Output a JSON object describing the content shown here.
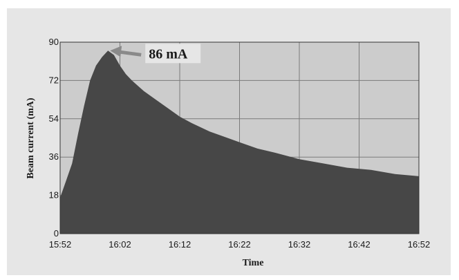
{
  "chart_data": {
    "type": "area",
    "title": "",
    "xlabel": "Time",
    "ylabel": "Beam current (mA)",
    "x_ticks": [
      "15:52",
      "16:02",
      "16:12",
      "16:22",
      "16:32",
      "16:42",
      "16:52"
    ],
    "y_ticks": [
      "0",
      "18",
      "36",
      "54",
      "72",
      "90"
    ],
    "ylim": [
      0,
      90
    ],
    "xlim": [
      "15:52",
      "16:52"
    ],
    "grid": true,
    "series": [
      {
        "color": "#474747",
        "x": [
          "15:52",
          "15:53",
          "15:54",
          "15:55",
          "15:56",
          "15:57",
          "15:58",
          "15:59",
          "16:00",
          "16:01",
          "16:02",
          "16:03",
          "16:04",
          "16:06",
          "16:08",
          "16:10",
          "16:12",
          "16:14",
          "16:17",
          "16:20",
          "16:22",
          "16:25",
          "16:28",
          "16:32",
          "16:36",
          "16:40",
          "16:44",
          "16:48",
          "16:52"
        ],
        "values": [
          17,
          25,
          33,
          47,
          60,
          72,
          79,
          83,
          86,
          84,
          79,
          75,
          72,
          67,
          63,
          59,
          55,
          52,
          48,
          45,
          43,
          40,
          38,
          35,
          33,
          31,
          30,
          28,
          27
        ]
      }
    ],
    "annotations": [
      {
        "text": "86 mA",
        "x": "16:00",
        "y": 86,
        "color": "#8a8a8a"
      }
    ]
  }
}
